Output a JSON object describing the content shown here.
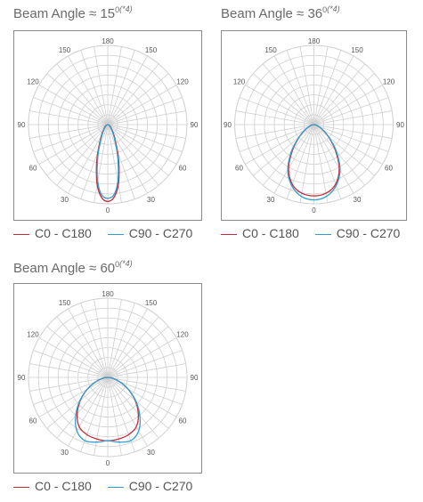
{
  "legend": {
    "c0_label": "C0 - C180",
    "c90_label": "C90 - C270"
  },
  "colors": {
    "c0": "#c62a3a",
    "c90": "#2f9fd0",
    "grid": "#cfcfcf",
    "frame": "#8a8a8a"
  },
  "angle_labels": [
    "180",
    "150",
    "150",
    "120",
    "120",
    "90",
    "90",
    "60",
    "60",
    "30",
    "30",
    "0"
  ],
  "chart_data": [
    {
      "type": "polar",
      "title_prefix": "Beam Angle ≈ 15",
      "title_degree": "0",
      "title_note": "(*4)",
      "angle_ticks": [
        0,
        30,
        60,
        90,
        120,
        150,
        180
      ],
      "series": [
        {
          "name": "C0 - C180",
          "angles": [
            0,
            5,
            10,
            15,
            20,
            30,
            45,
            60,
            75,
            90
          ],
          "values": [
            0.97,
            0.92,
            0.77,
            0.55,
            0.36,
            0.16,
            0.06,
            0.03,
            0.01,
            0
          ]
        },
        {
          "name": "C90 - C270",
          "angles": [
            0,
            5,
            10,
            15,
            20,
            30,
            45,
            60,
            75,
            90
          ],
          "values": [
            0.93,
            0.89,
            0.73,
            0.51,
            0.33,
            0.14,
            0.05,
            0.02,
            0.01,
            0
          ]
        }
      ]
    },
    {
      "type": "polar",
      "title_prefix": "Beam Angle ≈ 36",
      "title_degree": "0",
      "title_note": "(*4)",
      "angle_ticks": [
        0,
        30,
        60,
        90,
        120,
        150,
        180
      ],
      "series": [
        {
          "name": "C0 - C180",
          "angles": [
            0,
            10,
            20,
            30,
            40,
            50,
            60,
            75,
            90
          ],
          "values": [
            0.9,
            0.88,
            0.8,
            0.64,
            0.42,
            0.24,
            0.12,
            0.04,
            0
          ],
          "min": 0.1
        },
        {
          "name": "C90 - C270",
          "angles": [
            0,
            10,
            20,
            30,
            40,
            50,
            60,
            75,
            90
          ],
          "values": [
            0.95,
            0.92,
            0.82,
            0.66,
            0.44,
            0.25,
            0.13,
            0.04,
            0
          ],
          "min": 0.1
        }
      ]
    },
    {
      "type": "polar",
      "title_prefix": "Beam Angle ≈ 60",
      "title_degree": "0",
      "title_note": "(*4)",
      "angle_ticks": [
        0,
        30,
        60,
        90,
        120,
        150,
        180
      ],
      "series": [
        {
          "name": "C0 - C180",
          "angles": [
            0,
            10,
            20,
            30,
            40,
            50,
            60,
            70,
            80,
            90
          ],
          "values": [
            0.8,
            0.79,
            0.77,
            0.72,
            0.6,
            0.45,
            0.3,
            0.16,
            0.06,
            0
          ]
        },
        {
          "name": "C90 - C270",
          "angles": [
            0,
            10,
            20,
            30,
            40,
            50,
            60,
            70,
            80,
            90
          ],
          "values": [
            0.8,
            0.83,
            0.85,
            0.78,
            0.63,
            0.46,
            0.3,
            0.16,
            0.06,
            0
          ]
        }
      ]
    }
  ]
}
